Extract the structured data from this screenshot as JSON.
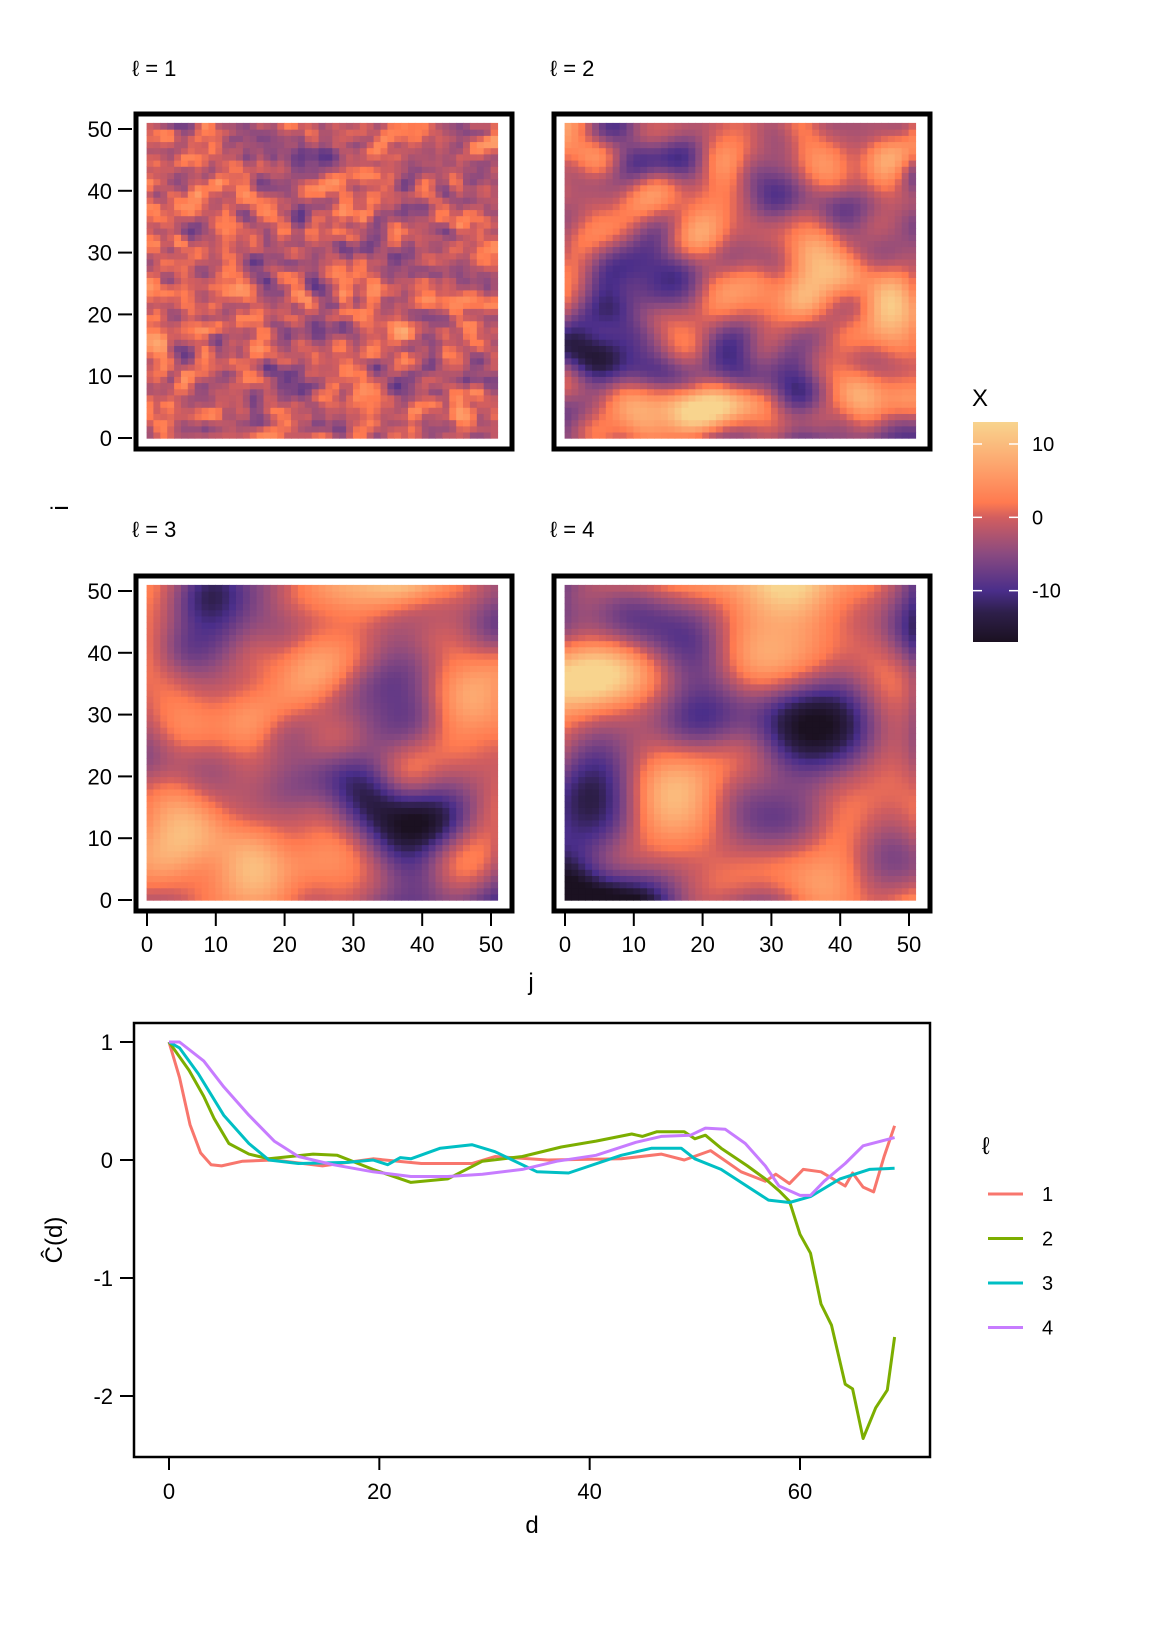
{
  "chart_data": [
    {
      "type": "heatmap",
      "facet_label_prefix": "ℓ = ",
      "panels": [
        {
          "label": "ℓ = 1",
          "smoothness": 1
        },
        {
          "label": "ℓ = 2",
          "smoothness": 2
        },
        {
          "label": "ℓ = 3",
          "smoothness": 3
        },
        {
          "label": "ℓ = 4",
          "smoothness": 4
        }
      ],
      "xlabel": "j",
      "ylabel": "i",
      "xlim": [
        0,
        50
      ],
      "ylim": [
        0,
        50
      ],
      "x_ticks": [
        "0",
        "10",
        "20",
        "30",
        "40",
        "50"
      ],
      "y_ticks": [
        "0",
        "10",
        "20",
        "30",
        "40",
        "50"
      ],
      "colorbar": {
        "title": "X",
        "range": [
          -17,
          13
        ],
        "ticks": [
          {
            "value": 10,
            "label": "10"
          },
          {
            "value": 0,
            "label": "0"
          },
          {
            "value": -10,
            "label": "-10"
          }
        ],
        "stops": [
          {
            "value": -17,
            "color": "#1b1121"
          },
          {
            "value": -13,
            "color": "#2e1f4a"
          },
          {
            "value": -10,
            "color": "#4a2e8a"
          },
          {
            "value": -5,
            "color": "#8a4a80"
          },
          {
            "value": 0,
            "color": "#d25e5f"
          },
          {
            "value": 2,
            "color": "#ff7a50"
          },
          {
            "value": 7,
            "color": "#fda46d"
          },
          {
            "value": 13,
            "color": "#f8d48e"
          }
        ]
      }
    },
    {
      "type": "line",
      "xlabel": "d",
      "ylabel": "Ĉ(d)",
      "xlim": [
        -3.5,
        72.5
      ],
      "ylim": [
        -2.55,
        1.15
      ],
      "x_ticks": [
        {
          "value": 0,
          "label": "0"
        },
        {
          "value": 20,
          "label": "20"
        },
        {
          "value": 40,
          "label": "40"
        },
        {
          "value": 60,
          "label": "60"
        }
      ],
      "y_ticks": [
        {
          "value": 1,
          "label": "1"
        },
        {
          "value": 0,
          "label": "0"
        },
        {
          "value": -1,
          "label": "-1"
        },
        {
          "value": -2,
          "label": "-2"
        }
      ],
      "legend": {
        "title": "ℓ",
        "placement": "right"
      },
      "series": [
        {
          "name": "1",
          "color": "#F8766D",
          "points": [
            [
              0,
              1
            ],
            [
              1,
              0.7
            ],
            [
              2,
              0.3
            ],
            [
              3,
              0.06
            ],
            [
              4,
              -0.04
            ],
            [
              5,
              -0.05
            ],
            [
              7,
              -0.01
            ],
            [
              10,
              0
            ],
            [
              14.6,
              -0.05
            ],
            [
              19.4,
              0.01
            ],
            [
              24,
              -0.03
            ],
            [
              28.8,
              -0.03
            ],
            [
              31,
              0.03
            ],
            [
              36,
              0
            ],
            [
              43,
              0.01
            ],
            [
              46.8,
              0.05
            ],
            [
              49,
              0
            ],
            [
              51.5,
              0.08
            ],
            [
              54.4,
              -0.1
            ],
            [
              56.7,
              -0.18
            ],
            [
              57.7,
              -0.12
            ],
            [
              59,
              -0.2
            ],
            [
              60.3,
              -0.08
            ],
            [
              62,
              -0.1
            ],
            [
              64.3,
              -0.22
            ],
            [
              65,
              -0.11
            ],
            [
              66,
              -0.23
            ],
            [
              67,
              -0.27
            ],
            [
              68,
              0.03
            ],
            [
              69,
              0.29
            ]
          ]
        },
        {
          "name": "2",
          "color": "#7CAE00",
          "points": [
            [
              0,
              1
            ],
            [
              1.9,
              0.76
            ],
            [
              3.3,
              0.54
            ],
            [
              4.3,
              0.35
            ],
            [
              5.7,
              0.14
            ],
            [
              7.6,
              0.05
            ],
            [
              9.5,
              0.01
            ],
            [
              13.7,
              0.05
            ],
            [
              16,
              0.04
            ],
            [
              19.4,
              -0.08
            ],
            [
              23,
              -0.19
            ],
            [
              26.5,
              -0.16
            ],
            [
              29.8,
              -0.01
            ],
            [
              33.6,
              0.03
            ],
            [
              37.3,
              0.11
            ],
            [
              40.6,
              0.16
            ],
            [
              44,
              0.22
            ],
            [
              45,
              0.2
            ],
            [
              46.4,
              0.24
            ],
            [
              49,
              0.24
            ],
            [
              50,
              0.18
            ],
            [
              51,
              0.21
            ],
            [
              52.5,
              0.1
            ],
            [
              55,
              -0.05
            ],
            [
              56.7,
              -0.16
            ],
            [
              58,
              -0.26
            ],
            [
              59,
              -0.35
            ],
            [
              60,
              -0.63
            ],
            [
              61,
              -0.79
            ],
            [
              62,
              -1.22
            ],
            [
              63,
              -1.4
            ],
            [
              64.3,
              -1.9
            ],
            [
              65,
              -1.94
            ],
            [
              66,
              -2.36
            ],
            [
              67.2,
              -2.1
            ],
            [
              68.3,
              -1.95
            ],
            [
              69,
              -1.5
            ]
          ]
        },
        {
          "name": "3",
          "color": "#00BFC4",
          "points": [
            [
              0,
              1
            ],
            [
              1,
              0.95
            ],
            [
              2.8,
              0.73
            ],
            [
              5.2,
              0.38
            ],
            [
              7.6,
              0.14
            ],
            [
              9.5,
              0
            ],
            [
              12.3,
              -0.03
            ],
            [
              17,
              -0.02
            ],
            [
              19.4,
              0
            ],
            [
              20.8,
              -0.04
            ],
            [
              22,
              0.02
            ],
            [
              23,
              0.01
            ],
            [
              25.8,
              0.1
            ],
            [
              28.8,
              0.13
            ],
            [
              31,
              0.07
            ],
            [
              35,
              -0.1
            ],
            [
              38,
              -0.11
            ],
            [
              43,
              0.04
            ],
            [
              45.9,
              0.1
            ],
            [
              48.7,
              0.1
            ],
            [
              50,
              0.01
            ],
            [
              52.5,
              -0.08
            ],
            [
              54.4,
              -0.19
            ],
            [
              57,
              -0.34
            ],
            [
              59,
              -0.36
            ],
            [
              61,
              -0.31
            ],
            [
              63.8,
              -0.16
            ],
            [
              66.6,
              -0.08
            ],
            [
              69,
              -0.07
            ]
          ]
        },
        {
          "name": "4",
          "color": "#C77CFF",
          "points": [
            [
              0,
              1
            ],
            [
              1,
              1
            ],
            [
              3.3,
              0.84
            ],
            [
              5.2,
              0.62
            ],
            [
              7.6,
              0.38
            ],
            [
              10,
              0.16
            ],
            [
              12.3,
              0.03
            ],
            [
              15.6,
              -0.04
            ],
            [
              19.4,
              -0.1
            ],
            [
              23,
              -0.14
            ],
            [
              26.5,
              -0.14
            ],
            [
              29.8,
              -0.12
            ],
            [
              33.6,
              -0.08
            ],
            [
              36.9,
              -0.01
            ],
            [
              40.6,
              0.04
            ],
            [
              44.4,
              0.15
            ],
            [
              46.8,
              0.2
            ],
            [
              49.6,
              0.21
            ],
            [
              51,
              0.27
            ],
            [
              52.9,
              0.26
            ],
            [
              54.8,
              0.14
            ],
            [
              56.7,
              -0.05
            ],
            [
              58,
              -0.22
            ],
            [
              60,
              -0.3
            ],
            [
              61,
              -0.3
            ],
            [
              62.3,
              -0.18
            ],
            [
              64.3,
              -0.03
            ],
            [
              66,
              0.12
            ],
            [
              69,
              0.19
            ]
          ]
        }
      ]
    }
  ]
}
